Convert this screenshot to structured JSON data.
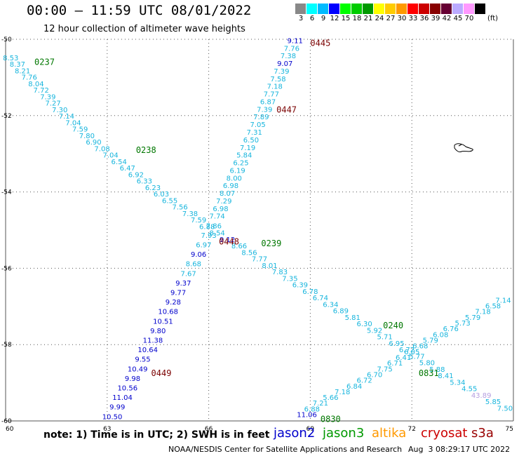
{
  "header": {
    "title": "00:00 – 11:59 UTC 08/01/2022",
    "subtitle": "12 hour collection of altimeter wave heights"
  },
  "legend": {
    "unit": "(ft)",
    "bins": [
      {
        "label": "3",
        "color": "#888888"
      },
      {
        "label": "6",
        "color": "#00ffff"
      },
      {
        "label": "9",
        "color": "#00bbff"
      },
      {
        "label": "12",
        "color": "#0000ff"
      },
      {
        "label": "15",
        "color": "#00ff00"
      },
      {
        "label": "18",
        "color": "#00cc00"
      },
      {
        "label": "21",
        "color": "#009900"
      },
      {
        "label": "24",
        "color": "#ffff00"
      },
      {
        "label": "27",
        "color": "#ffcc00"
      },
      {
        "label": "30",
        "color": "#ff9900"
      },
      {
        "label": "33",
        "color": "#ff0000"
      },
      {
        "label": "36",
        "color": "#cc0000"
      },
      {
        "label": "39",
        "color": "#880000"
      },
      {
        "label": "42",
        "color": "#660033"
      },
      {
        "label": "45",
        "color": "#bbaaff"
      },
      {
        "label": "70",
        "color": "#ff99ff"
      },
      {
        "label": "",
        "color": "#000000"
      }
    ]
  },
  "footer": {
    "note": "note:  1) Time is in UTC; 2) SWH is in feet",
    "satellites": [
      {
        "name": "jason2",
        "color": "#0000cc"
      },
      {
        "name": "jason3",
        "color": "#009900"
      },
      {
        "name": "altika",
        "color": "#ff9900"
      },
      {
        "name": "cryosat",
        "color": "#cc0000"
      },
      {
        "name": "s3a",
        "color": "#990000"
      }
    ],
    "credit": "NOAA/NESDIS Center for Satellite Applications and Research",
    "timestamp": "Aug  3 08:29:17 UTC 2022"
  },
  "chart_data": {
    "type": "scatter",
    "xlim": [
      60,
      75
    ],
    "ylim": [
      -60,
      -50
    ],
    "x_ticks": [
      "60",
      "63",
      "66",
      "69",
      "72",
      "75"
    ],
    "y_ticks": [
      "-50",
      "-52",
      "-54",
      "-56",
      "-58",
      "-60"
    ],
    "grid": true,
    "colors": {
      "cyan": "#17b5dd",
      "blue": "#0000cc",
      "lilac": "#b59ee0",
      "green": "#007700",
      "maroon": "#7a0000"
    },
    "pass_labels": [
      {
        "text": "0237",
        "x": 60.85,
        "y": -50.6,
        "color": "green"
      },
      {
        "text": "0238",
        "x": 63.85,
        "y": -52.9,
        "color": "green"
      },
      {
        "text": "0239",
        "x": 67.55,
        "y": -55.35,
        "color": "green"
      },
      {
        "text": "0240",
        "x": 71.15,
        "y": -57.5,
        "color": "green"
      },
      {
        "text": "0830",
        "x": 69.3,
        "y": -59.95,
        "color": "green"
      },
      {
        "text": "0831",
        "x": 72.2,
        "y": -58.75,
        "color": "green"
      },
      {
        "text": "0445",
        "x": 69.0,
        "y": -50.1,
        "color": "maroon"
      },
      {
        "text": "0447",
        "x": 68.0,
        "y": -51.85,
        "color": "maroon"
      },
      {
        "text": "0448",
        "x": 66.3,
        "y": -55.3,
        "color": "maroon"
      },
      {
        "text": "0449",
        "x": 64.3,
        "y": -58.75,
        "color": "maroon"
      }
    ],
    "series": [
      {
        "values": [
          {
            "x": 60.15,
            "y": -50.55,
            "v": "8.53",
            "c": "cyan"
          },
          {
            "x": 60.35,
            "y": -50.72,
            "v": "8.37",
            "c": "cyan"
          },
          {
            "x": 60.5,
            "y": -50.89,
            "v": "8.21",
            "c": "cyan"
          },
          {
            "x": 60.7,
            "y": -51.06,
            "v": "7.76",
            "c": "cyan"
          },
          {
            "x": 60.9,
            "y": -51.23,
            "v": "8.04",
            "c": "cyan"
          },
          {
            "x": 61.05,
            "y": -51.4,
            "v": "7.72",
            "c": "cyan"
          },
          {
            "x": 61.25,
            "y": -51.57,
            "v": "7.39",
            "c": "cyan"
          },
          {
            "x": 61.4,
            "y": -51.74,
            "v": "7.27",
            "c": "cyan"
          },
          {
            "x": 61.6,
            "y": -51.91,
            "v": "7.30",
            "c": "cyan"
          },
          {
            "x": 61.8,
            "y": -52.08,
            "v": "7.14",
            "c": "cyan"
          },
          {
            "x": 62.0,
            "y": -52.25,
            "v": "7.04",
            "c": "cyan"
          },
          {
            "x": 62.2,
            "y": -52.42,
            "v": "7.59",
            "c": "cyan"
          },
          {
            "x": 62.4,
            "y": -52.59,
            "v": "7.80",
            "c": "cyan"
          },
          {
            "x": 62.6,
            "y": -52.76,
            "v": "6.90",
            "c": "cyan"
          },
          {
            "x": 62.85,
            "y": -52.93,
            "v": "7.08",
            "c": "cyan"
          },
          {
            "x": 63.1,
            "y": -53.1,
            "v": "7.04",
            "c": "cyan"
          },
          {
            "x": 63.35,
            "y": -53.27,
            "v": "6.54",
            "c": "cyan"
          },
          {
            "x": 63.6,
            "y": -53.44,
            "v": "6.47",
            "c": "cyan"
          },
          {
            "x": 63.85,
            "y": -53.61,
            "v": "6.92",
            "c": "cyan"
          },
          {
            "x": 64.1,
            "y": -53.78,
            "v": "6.33",
            "c": "cyan"
          },
          {
            "x": 64.35,
            "y": -53.95,
            "v": "6.23",
            "c": "cyan"
          },
          {
            "x": 64.6,
            "y": -54.12,
            "v": "6.03",
            "c": "cyan"
          },
          {
            "x": 64.85,
            "y": -54.29,
            "v": "6.55",
            "c": "cyan"
          },
          {
            "x": 65.15,
            "y": -54.46,
            "v": "7.56",
            "c": "cyan"
          },
          {
            "x": 65.45,
            "y": -54.63,
            "v": "7.38",
            "c": "cyan"
          },
          {
            "x": 65.7,
            "y": -54.8,
            "v": "7.59",
            "c": "cyan"
          },
          {
            "x": 65.95,
            "y": -54.97,
            "v": "6.88",
            "c": "cyan"
          },
          {
            "x": 66.25,
            "y": -55.14,
            "v": "8.54",
            "c": "cyan"
          },
          {
            "x": 66.55,
            "y": -55.31,
            "v": "9.12",
            "c": "blue"
          },
          {
            "x": 66.9,
            "y": -55.48,
            "v": "8.66",
            "c": "cyan"
          },
          {
            "x": 67.2,
            "y": -55.65,
            "v": "8.56",
            "c": "cyan"
          },
          {
            "x": 67.5,
            "y": -55.82,
            "v": "7.77",
            "c": "cyan"
          },
          {
            "x": 67.8,
            "y": -55.99,
            "v": "8.01",
            "c": "cyan"
          },
          {
            "x": 68.1,
            "y": -56.16,
            "v": "7.83",
            "c": "cyan"
          },
          {
            "x": 68.4,
            "y": -56.33,
            "v": "7.35",
            "c": "cyan"
          },
          {
            "x": 68.7,
            "y": -56.5,
            "v": "6.39",
            "c": "cyan"
          },
          {
            "x": 69.0,
            "y": -56.67,
            "v": "6.78",
            "c": "cyan"
          },
          {
            "x": 69.3,
            "y": -56.84,
            "v": "6.74",
            "c": "cyan"
          },
          {
            "x": 69.6,
            "y": -57.01,
            "v": "6.34",
            "c": "cyan"
          },
          {
            "x": 69.9,
            "y": -57.18,
            "v": "6.89",
            "c": "cyan"
          },
          {
            "x": 70.25,
            "y": -57.35,
            "v": "5.81",
            "c": "cyan"
          },
          {
            "x": 70.6,
            "y": -57.52,
            "v": "6.30",
            "c": "cyan"
          },
          {
            "x": 70.9,
            "y": -57.69,
            "v": "5.92",
            "c": "cyan"
          },
          {
            "x": 71.2,
            "y": -57.86,
            "v": "5.71",
            "c": "cyan"
          },
          {
            "x": 71.55,
            "y": -58.03,
            "v": "6.95",
            "c": "cyan"
          },
          {
            "x": 71.85,
            "y": -58.2,
            "v": "6.72",
            "c": "cyan"
          },
          {
            "x": 72.15,
            "y": -58.37,
            "v": "5.77",
            "c": "cyan"
          },
          {
            "x": 72.45,
            "y": -58.54,
            "v": "5.80",
            "c": "cyan"
          },
          {
            "x": 72.75,
            "y": -58.71,
            "v": "5.88",
            "c": "cyan"
          },
          {
            "x": 73.0,
            "y": -58.88,
            "v": "8.41",
            "c": "cyan"
          },
          {
            "x": 73.35,
            "y": -59.05,
            "v": "5.34",
            "c": "cyan"
          },
          {
            "x": 73.7,
            "y": -59.22,
            "v": "4.55",
            "c": "cyan"
          },
          {
            "x": 74.05,
            "y": -59.39,
            "v": "43.89",
            "c": "lilac"
          },
          {
            "x": 74.4,
            "y": -59.56,
            "v": "5.85",
            "c": "cyan"
          },
          {
            "x": 74.75,
            "y": -59.73,
            "v": "7.50",
            "c": "cyan"
          }
        ]
      },
      {
        "values": [
          {
            "x": 68.55,
            "y": -50.1,
            "v": "9.11",
            "c": "blue"
          },
          {
            "x": 68.45,
            "y": -50.3,
            "v": "7.76",
            "c": "cyan"
          },
          {
            "x": 68.35,
            "y": -50.5,
            "v": "7.38",
            "c": "cyan"
          },
          {
            "x": 68.25,
            "y": -50.7,
            "v": "9.07",
            "c": "blue"
          },
          {
            "x": 68.15,
            "y": -50.9,
            "v": "7.39",
            "c": "cyan"
          },
          {
            "x": 68.05,
            "y": -51.1,
            "v": "7.58",
            "c": "cyan"
          },
          {
            "x": 67.95,
            "y": -51.3,
            "v": "7.18",
            "c": "cyan"
          },
          {
            "x": 67.85,
            "y": -51.5,
            "v": "7.77",
            "c": "cyan"
          },
          {
            "x": 67.75,
            "y": -51.7,
            "v": "6.87",
            "c": "cyan"
          },
          {
            "x": 67.65,
            "y": -51.9,
            "v": "7.39",
            "c": "cyan"
          },
          {
            "x": 67.55,
            "y": -52.1,
            "v": "7.89",
            "c": "cyan"
          },
          {
            "x": 67.45,
            "y": -52.3,
            "v": "7.05",
            "c": "cyan"
          },
          {
            "x": 67.35,
            "y": -52.5,
            "v": "7.31",
            "c": "cyan"
          },
          {
            "x": 67.25,
            "y": -52.7,
            "v": "6.50",
            "c": "cyan"
          },
          {
            "x": 67.15,
            "y": -52.9,
            "v": "7.19",
            "c": "cyan"
          },
          {
            "x": 67.05,
            "y": -53.1,
            "v": "5.84",
            "c": "cyan"
          },
          {
            "x": 66.95,
            "y": -53.3,
            "v": "6.25",
            "c": "cyan"
          },
          {
            "x": 66.85,
            "y": -53.5,
            "v": "6.19",
            "c": "cyan"
          },
          {
            "x": 66.75,
            "y": -53.7,
            "v": "8.00",
            "c": "cyan"
          },
          {
            "x": 66.65,
            "y": -53.9,
            "v": "6.98",
            "c": "cyan"
          },
          {
            "x": 66.55,
            "y": -54.1,
            "v": "8.07",
            "c": "cyan"
          },
          {
            "x": 66.45,
            "y": -54.3,
            "v": "7.29",
            "c": "cyan"
          },
          {
            "x": 66.35,
            "y": -54.5,
            "v": "6.98",
            "c": "cyan"
          },
          {
            "x": 66.25,
            "y": -54.7,
            "v": "7.74",
            "c": "cyan"
          },
          {
            "x": 66.15,
            "y": -54.95,
            "v": "7.86",
            "c": "cyan"
          },
          {
            "x": 66.0,
            "y": -55.2,
            "v": "7.93",
            "c": "cyan"
          },
          {
            "x": 65.85,
            "y": -55.45,
            "v": "6.97",
            "c": "cyan"
          },
          {
            "x": 65.7,
            "y": -55.7,
            "v": "9.06",
            "c": "blue"
          },
          {
            "x": 65.55,
            "y": -55.95,
            "v": "8.68",
            "c": "cyan"
          },
          {
            "x": 65.4,
            "y": -56.2,
            "v": "7.67",
            "c": "cyan"
          },
          {
            "x": 65.25,
            "y": -56.45,
            "v": "9.37",
            "c": "blue"
          },
          {
            "x": 65.1,
            "y": -56.7,
            "v": "9.77",
            "c": "blue"
          },
          {
            "x": 64.95,
            "y": -56.95,
            "v": "9.28",
            "c": "blue"
          },
          {
            "x": 64.8,
            "y": -57.2,
            "v": "10.68",
            "c": "blue"
          },
          {
            "x": 64.65,
            "y": -57.45,
            "v": "10.51",
            "c": "blue"
          },
          {
            "x": 64.5,
            "y": -57.7,
            "v": "9.80",
            "c": "blue"
          },
          {
            "x": 64.35,
            "y": -57.95,
            "v": "11.38",
            "c": "blue"
          },
          {
            "x": 64.2,
            "y": -58.2,
            "v": "10.64",
            "c": "blue"
          },
          {
            "x": 64.05,
            "y": -58.45,
            "v": "9.55",
            "c": "blue"
          },
          {
            "x": 63.9,
            "y": -58.7,
            "v": "10.49",
            "c": "blue"
          },
          {
            "x": 63.75,
            "y": -58.95,
            "v": "9.98",
            "c": "blue"
          },
          {
            "x": 63.6,
            "y": -59.2,
            "v": "10.56",
            "c": "blue"
          },
          {
            "x": 63.45,
            "y": -59.45,
            "v": "11.04",
            "c": "blue"
          },
          {
            "x": 63.3,
            "y": -59.7,
            "v": "9.99",
            "c": "blue"
          },
          {
            "x": 63.15,
            "y": -59.95,
            "v": "10.50",
            "c": "blue"
          }
        ]
      },
      {
        "values": [
          {
            "x": 68.9,
            "y": -59.9,
            "v": "11.06",
            "c": "blue"
          },
          {
            "x": 69.05,
            "y": -59.75,
            "v": "6.88",
            "c": "cyan"
          },
          {
            "x": 69.3,
            "y": -59.6,
            "v": "7.21",
            "c": "cyan"
          },
          {
            "x": 69.6,
            "y": -59.45,
            "v": "5.66",
            "c": "cyan"
          },
          {
            "x": 69.95,
            "y": -59.3,
            "v": "7.18",
            "c": "cyan"
          },
          {
            "x": 70.3,
            "y": -59.15,
            "v": "6.84",
            "c": "cyan"
          },
          {
            "x": 70.6,
            "y": -59.0,
            "v": "6.72",
            "c": "cyan"
          },
          {
            "x": 70.9,
            "y": -58.85,
            "v": "6.70",
            "c": "cyan"
          },
          {
            "x": 71.2,
            "y": -58.7,
            "v": "7.75",
            "c": "cyan"
          },
          {
            "x": 71.5,
            "y": -58.55,
            "v": "6.71",
            "c": "cyan"
          },
          {
            "x": 71.75,
            "y": -58.4,
            "v": "6.41",
            "c": "cyan"
          },
          {
            "x": 72.0,
            "y": -58.25,
            "v": "6.05",
            "c": "cyan"
          },
          {
            "x": 72.25,
            "y": -58.1,
            "v": "6.68",
            "c": "cyan"
          },
          {
            "x": 72.55,
            "y": -57.95,
            "v": "5.79",
            "c": "cyan"
          },
          {
            "x": 72.85,
            "y": -57.8,
            "v": "6.08",
            "c": "cyan"
          },
          {
            "x": 73.15,
            "y": -57.65,
            "v": "6.76",
            "c": "cyan"
          },
          {
            "x": 73.5,
            "y": -57.5,
            "v": "5.73",
            "c": "cyan"
          },
          {
            "x": 73.8,
            "y": -57.35,
            "v": "5.79",
            "c": "cyan"
          },
          {
            "x": 74.1,
            "y": -57.2,
            "v": "7.18",
            "c": "cyan"
          },
          {
            "x": 74.4,
            "y": -57.05,
            "v": "6.58",
            "c": "cyan"
          },
          {
            "x": 74.7,
            "y": -56.9,
            "v": "7.14",
            "c": "cyan"
          }
        ]
      }
    ]
  }
}
